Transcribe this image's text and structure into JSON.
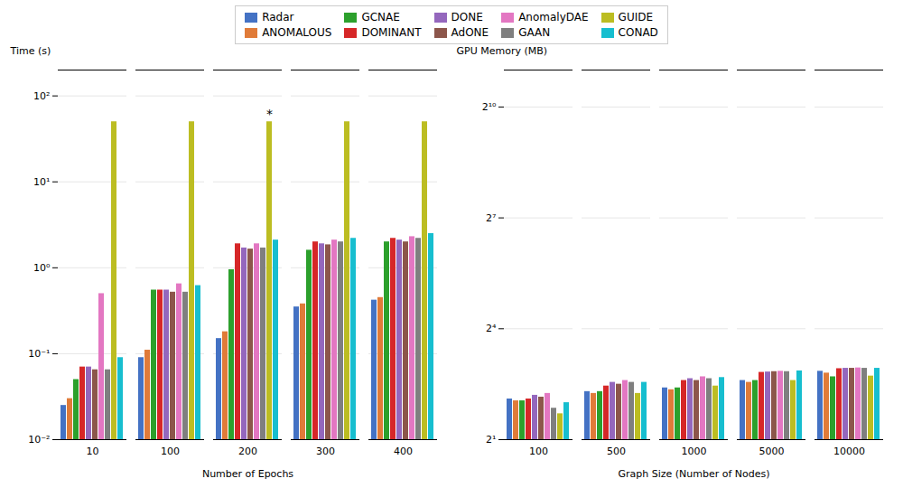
{
  "chart_data": [
    {
      "type": "bar",
      "xlabel": "Number of Epochs",
      "ylabel": "Time (s)",
      "categories": [
        "10",
        "100",
        "200",
        "300",
        "400"
      ],
      "series": [
        {
          "name": "Radar",
          "color": "#4472c4",
          "values": [
            0.025,
            0.09,
            0.15,
            0.35,
            0.42
          ]
        },
        {
          "name": "ANOMALOUS",
          "color": "#e07b39",
          "values": [
            0.03,
            0.11,
            0.18,
            0.38,
            0.45
          ]
        },
        {
          "name": "GCNAE",
          "color": "#2ca02c",
          "values": [
            0.05,
            0.55,
            0.95,
            1.6,
            2.0
          ]
        },
        {
          "name": "DOMINANT",
          "color": "#d62728",
          "values": [
            0.07,
            0.55,
            1.9,
            2.0,
            2.2
          ]
        },
        {
          "name": "DONE",
          "color": "#9467bd",
          "values": [
            0.07,
            0.55,
            1.7,
            1.9,
            2.1
          ]
        },
        {
          "name": "AdONE",
          "color": "#8c564b",
          "values": [
            0.065,
            0.52,
            1.65,
            1.85,
            2.0
          ]
        },
        {
          "name": "AnomalyDAE",
          "color": "#e377c2",
          "values": [
            0.5,
            0.65,
            1.9,
            2.1,
            2.3
          ]
        },
        {
          "name": "GAAN",
          "color": "#7f7f7f",
          "values": [
            0.065,
            0.52,
            1.7,
            2.0,
            2.2
          ]
        },
        {
          "name": "GUIDE",
          "color": "#bcbd22",
          "values": [
            50.0,
            50.0,
            50.0,
            50.0,
            50.0
          ]
        },
        {
          "name": "CONAD",
          "color": "#17becf",
          "values": [
            0.09,
            0.62,
            2.1,
            2.2,
            2.5
          ]
        }
      ],
      "log": "y",
      "ylim": [
        0.01,
        200
      ],
      "yticks": [
        {
          "value": 0.01,
          "label": "10⁻²"
        },
        {
          "value": 0.1,
          "label": "10⁻¹"
        },
        {
          "value": 1,
          "label": "10⁰"
        },
        {
          "value": 10,
          "label": "10¹"
        },
        {
          "value": 100,
          "label": "10²"
        }
      ],
      "grid": true,
      "legend": "top",
      "annotations": [
        {
          "text": "*",
          "x": "200",
          "series": "GUIDE",
          "y": 55
        }
      ]
    },
    {
      "type": "bar",
      "xlabel": "Graph Size (Number of Nodes)",
      "ylabel": "GPU Memory (MB)",
      "categories": [
        "100",
        "500",
        "1000",
        "5000",
        "10000"
      ],
      "series": [
        {
          "name": "Radar",
          "color": "#4472c4",
          "values": [
            4.2871,
            4.9246,
            5.278,
            6.0629,
            7.21
          ]
        },
        {
          "name": "ANOMALOUS",
          "color": "#e07b39",
          "values": [
            4.1411,
            4.7568,
            5.0982,
            5.8563,
            6.9644
          ]
        },
        {
          "name": "GCNAE",
          "color": "#2ca02c",
          "values": [
            4.1411,
            4.9246,
            5.278,
            6.0629,
            6.498
          ]
        },
        {
          "name": "DOMINANT",
          "color": "#d62728",
          "values": [
            4.2871,
            5.4642,
            6.0629,
            7.0616,
            7.5685
          ]
        },
        {
          "name": "DONE",
          "color": "#9467bd",
          "values": [
            4.5948,
            5.8563,
            6.2767,
            7.1107,
            7.6211
          ]
        },
        {
          "name": "AdONE",
          "color": "#8c564b",
          "values": [
            4.4383,
            5.6569,
            6.0629,
            7.1602,
            7.6211
          ]
        },
        {
          "name": "AnomalyDAE",
          "color": "#e377c2",
          "values": [
            4.7568,
            6.0629,
            6.498,
            7.21,
            7.6741
          ]
        },
        {
          "name": "GAAN",
          "color": "#7f7f7f",
          "values": [
            3.605,
            5.8563,
            6.2767,
            7.1602,
            7.6211
          ]
        },
        {
          "name": "GUIDE",
          "color": "#bcbd22",
          "values": [
            3.249,
            4.7568,
            5.4642,
            6.0629,
            6.5887
          ]
        },
        {
          "name": "CONAD",
          "color": "#17becf",
          "values": [
            4,
            5.8563,
            6.4086,
            7.2602,
            7.6211
          ]
        }
      ],
      "log": "y",
      "ylim": [
        2,
        2048
      ],
      "yticks": [
        {
          "value": 2,
          "label": "2¹"
        },
        {
          "value": 16,
          "label": "2⁴"
        },
        {
          "value": 128,
          "label": "2⁷"
        },
        {
          "value": 1024,
          "label": "2¹⁰"
        }
      ],
      "grid": true,
      "legend": "top"
    }
  ]
}
